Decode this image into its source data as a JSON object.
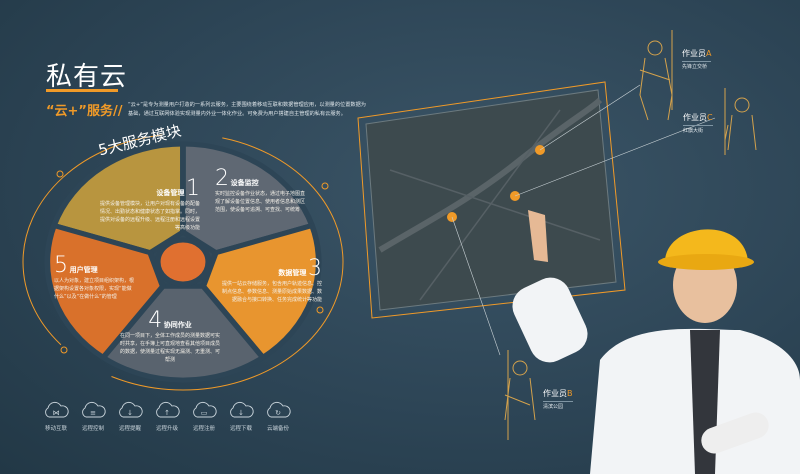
{
  "title": "私有云",
  "subtitle": "“云+”服务//",
  "intro": "“云+”是专为测量用户打造的一系列云服务，主要围绕着移动互联和数据管理应用，以测量的位置数据为基础，通过互联网体验实现测量内外业一体化作业。可免费为用户搭建自主管理的私有云服务。",
  "wheel_title": "5大服务模块",
  "modules": [
    {
      "num": "1",
      "name": "设备管理",
      "desc": "提供设备管理模块，让用户对现有设备的配备情况、出勤状态和健康状态了如指掌。同时，提供对设备的远程升级、远程注册和远程设置等高级功能",
      "color": "#b8953f"
    },
    {
      "num": "2",
      "name": "设备监控",
      "desc": "实时监控设备作业状态，通过电子地图直观了解设备位置信息、使用者信息和测区范围，使设备可追溯、可查找、可统筹",
      "color": "#5f6873"
    },
    {
      "num": "3",
      "name": "数据管理",
      "desc": "提供一站云存储服务，包含用户轨迹信息、控制点信息、参数信息、测量原始成果数据、数据融合与接口转换、任务完成统计等功能",
      "color": "#e8952f"
    },
    {
      "num": "4",
      "name": "协同作业",
      "desc": "在同一项目下，全体工作成员的测量数据可实时共享，在手簿上可直观地查看其他项目成员的数据，使测量过程实现无漏测、无重测、可帮测",
      "color": "#59636e"
    },
    {
      "num": "5",
      "name": "用户管理",
      "desc": "以人为对象，建立项目组织架构，根据架构设置各对象权限，实现“能做什么”以及“在做什么”的管理",
      "color": "#d9712b"
    }
  ],
  "features": [
    {
      "label": "移动互联",
      "icon": "cloud-network-icon"
    },
    {
      "label": "远程控制",
      "icon": "cloud-sliders-icon"
    },
    {
      "label": "远程提醒",
      "icon": "cloud-alert-icon"
    },
    {
      "label": "远程升级",
      "icon": "cloud-upload-icon"
    },
    {
      "label": "远程注册",
      "icon": "cloud-monitor-icon"
    },
    {
      "label": "远程下载",
      "icon": "cloud-download-icon"
    },
    {
      "label": "云端备份",
      "icon": "cloud-sync-icon"
    }
  ],
  "workers": [
    {
      "name": "作业员",
      "letter": "A",
      "place": "先锋立交桥"
    },
    {
      "name": "作业员",
      "letter": "C",
      "place": "红旗大街"
    },
    {
      "name": "作业员",
      "letter": "B",
      "place": "清滨公园"
    }
  ],
  "colors": {
    "accent": "#f09a28",
    "background": "#2d4556"
  }
}
